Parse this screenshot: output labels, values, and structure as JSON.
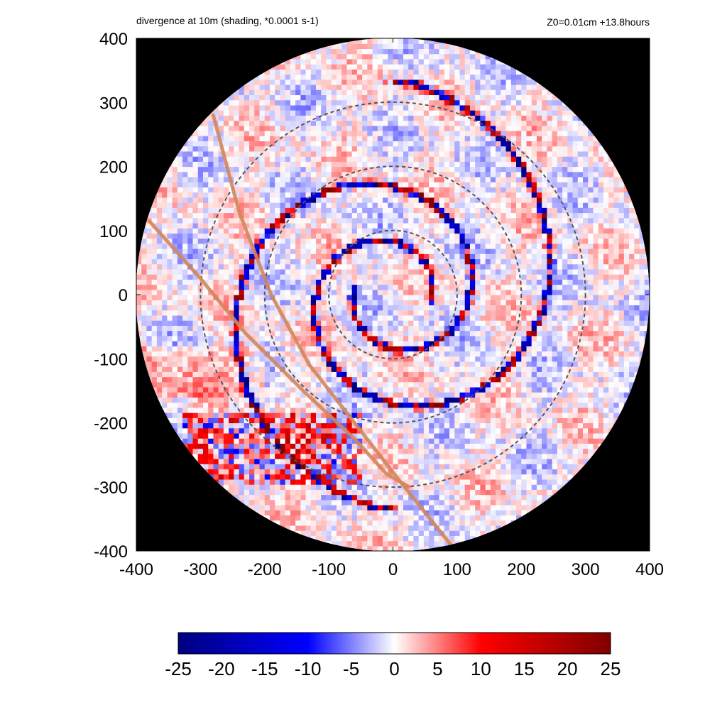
{
  "chart_data": {
    "type": "heatmap",
    "title": "divergence at 10m (shading, *0.0001 s-1)",
    "subtitle": "Z0=0.01cm  +13.8hours",
    "xlabel": "",
    "ylabel": "",
    "xlim": [
      -400,
      400
    ],
    "ylim": [
      -400,
      400
    ],
    "x_ticks": [
      -400,
      -300,
      -200,
      -100,
      0,
      100,
      200,
      300,
      400
    ],
    "y_ticks": [
      -400,
      -300,
      -200,
      -100,
      0,
      100,
      200,
      300,
      400
    ],
    "domain_radius": 400,
    "reference_circles": [
      {
        "name": "circle-r100",
        "radius": 100,
        "style": "dashed",
        "color": "#555555"
      },
      {
        "name": "circle-r200",
        "radius": 200,
        "style": "dashed",
        "color": "#555555"
      },
      {
        "name": "circle-r300",
        "radius": 300,
        "style": "dashed",
        "color": "#555555"
      }
    ],
    "track_lines": [
      {
        "name": "track-line-1",
        "color": "#d2875a",
        "points": [
          [
            -280,
            280
          ],
          [
            -240,
            130
          ],
          [
            -190,
            0
          ],
          [
            -130,
            -110
          ],
          [
            -60,
            -200
          ],
          [
            10,
            -290
          ],
          [
            90,
            -390
          ]
        ]
      },
      {
        "name": "track-line-2",
        "color": "#d2875a",
        "points": [
          [
            -380,
            115
          ],
          [
            -300,
            25
          ],
          [
            -230,
            -60
          ],
          [
            -140,
            -150
          ],
          [
            -60,
            -225
          ],
          [
            -10,
            -280
          ],
          [
            25,
            -300
          ]
        ]
      }
    ],
    "colorbar": {
      "min": -25,
      "max": 25,
      "ticks": [
        -25,
        -20,
        -15,
        -10,
        -5,
        0,
        5,
        10,
        15,
        20,
        25
      ],
      "tick_labels": [
        "-25",
        "-20",
        "-15",
        "-10",
        "-5",
        "0",
        "5",
        "10",
        "15",
        "20",
        "25"
      ],
      "colors": [
        "#00007f",
        "#0000ff",
        "#ffffff",
        "#ff0000",
        "#7f0000"
      ]
    },
    "background_color": "#000000"
  }
}
